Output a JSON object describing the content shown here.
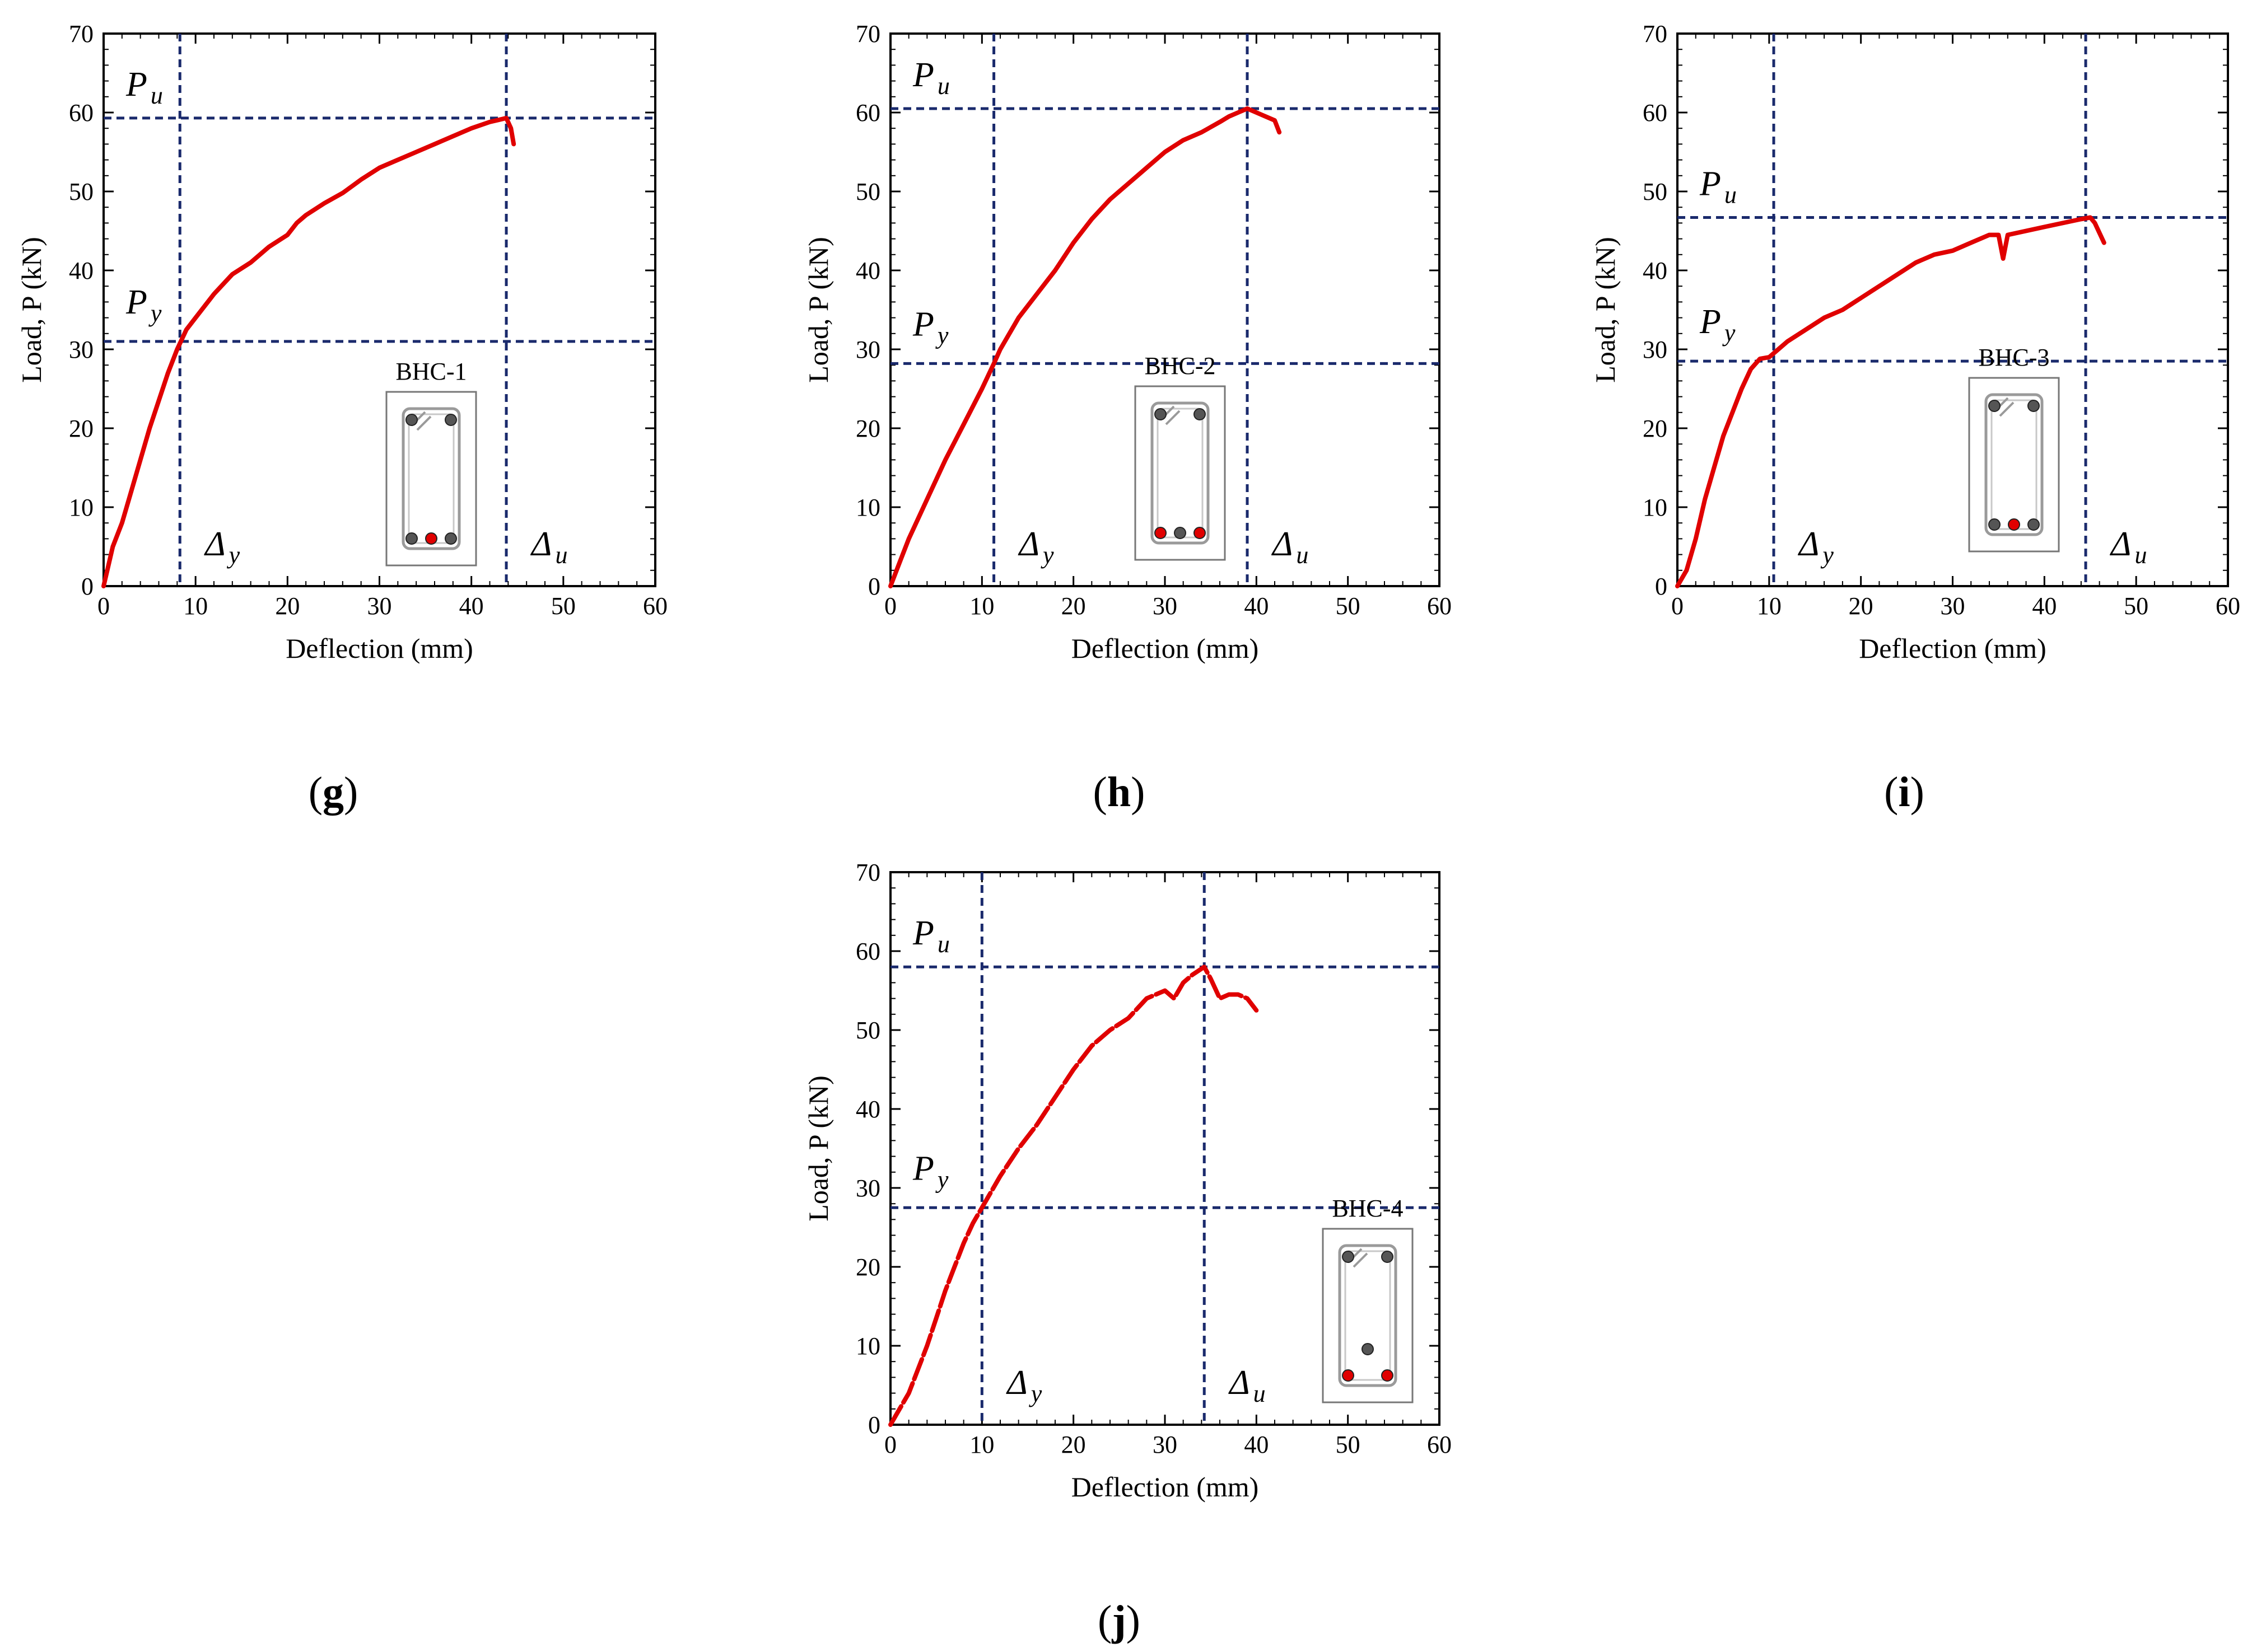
{
  "chart_data": [
    {
      "type": "line",
      "panel": "g",
      "specimen": "BHC-1",
      "xlabel": "Deflection (mm)",
      "ylabel": "Load, P (kN)",
      "xlim": [
        0,
        60
      ],
      "ylim": [
        0,
        70
      ],
      "xticks": [
        0,
        10,
        20,
        30,
        40,
        50,
        60
      ],
      "yticks": [
        0,
        10,
        20,
        30,
        40,
        50,
        60,
        70
      ],
      "yield": {
        "deflection": 8.3,
        "load": 31.0
      },
      "ultimate": {
        "deflection": 43.8,
        "load": 59.3
      },
      "annotations": {
        "Pu": "P",
        "Pu_sub": "u",
        "Py": "P",
        "Py_sub": "y",
        "Dy": "Δ",
        "Dy_sub": "y",
        "Du": "Δ",
        "Du_sub": "u"
      },
      "series": [
        {
          "name": "BHC-1",
          "color": "#e00000",
          "x": [
            0,
            1,
            2,
            3,
            4,
            5,
            6,
            7,
            8,
            9,
            10,
            12,
            14,
            16,
            18,
            20,
            21,
            22,
            24,
            26,
            28,
            30,
            32,
            34,
            36,
            38,
            40,
            42,
            43.8,
            44.3,
            44.6
          ],
          "y": [
            0,
            5,
            8,
            12,
            16,
            20,
            23.5,
            27,
            30,
            32.5,
            34,
            37,
            39.5,
            41,
            43,
            44.5,
            46,
            47,
            48.5,
            49.8,
            51.5,
            53,
            54,
            55,
            56,
            57,
            58,
            58.8,
            59.3,
            58,
            56
          ]
        }
      ],
      "inset": {
        "top_bars": [
          {
            "color": "#555555"
          },
          {
            "color": "#555555"
          }
        ],
        "bottom_bars": [
          {
            "color": "#555555"
          },
          {
            "color": "#e00000"
          },
          {
            "color": "#555555"
          }
        ]
      }
    },
    {
      "type": "line",
      "panel": "h",
      "specimen": "BHC-2",
      "xlabel": "Deflection (mm)",
      "ylabel": "Load, P (kN)",
      "xlim": [
        0,
        60
      ],
      "ylim": [
        0,
        70
      ],
      "xticks": [
        0,
        10,
        20,
        30,
        40,
        50,
        60
      ],
      "yticks": [
        0,
        10,
        20,
        30,
        40,
        50,
        60,
        70
      ],
      "yield": {
        "deflection": 11.3,
        "load": 28.2
      },
      "ultimate": {
        "deflection": 39.0,
        "load": 60.5
      },
      "annotations": {
        "Pu": "P",
        "Pu_sub": "u",
        "Py": "P",
        "Py_sub": "y",
        "Dy": "Δ",
        "Dy_sub": "y",
        "Du": "Δ",
        "Du_sub": "u"
      },
      "series": [
        {
          "name": "BHC-2",
          "color": "#e00000",
          "x": [
            0,
            1,
            2,
            4,
            6,
            8,
            10,
            11.3,
            12,
            14,
            16,
            18,
            20,
            22,
            24,
            26,
            28,
            30,
            32,
            34,
            36,
            37,
            38,
            39,
            40,
            41,
            42,
            42.5
          ],
          "y": [
            0,
            3,
            6,
            11,
            16,
            20.5,
            25,
            28.2,
            30,
            34,
            37,
            40,
            43.5,
            46.5,
            49,
            51,
            53,
            55,
            56.5,
            57.5,
            58.8,
            59.5,
            60,
            60.5,
            60,
            59.5,
            59,
            57.5
          ]
        }
      ],
      "inset": {
        "top_bars": [
          {
            "color": "#555555"
          },
          {
            "color": "#555555"
          }
        ],
        "bottom_bars": [
          {
            "color": "#e00000"
          },
          {
            "color": "#555555"
          },
          {
            "color": "#e00000"
          }
        ]
      }
    },
    {
      "type": "line",
      "panel": "i",
      "specimen": "BHC-3",
      "xlabel": "Deflection (mm)",
      "ylabel": "Load, P (kN)",
      "xlim": [
        0,
        60
      ],
      "ylim": [
        0,
        70
      ],
      "xticks": [
        0,
        10,
        20,
        30,
        40,
        50,
        60
      ],
      "yticks": [
        0,
        10,
        20,
        30,
        40,
        50,
        60,
        70
      ],
      "yield": {
        "deflection": 10.5,
        "load": 28.5
      },
      "ultimate": {
        "deflection": 44.5,
        "load": 46.7
      },
      "annotations": {
        "Pu": "P",
        "Pu_sub": "u",
        "Py": "P",
        "Py_sub": "y",
        "Dy": "Δ",
        "Dy_sub": "y",
        "Du": "Δ",
        "Du_sub": "u"
      },
      "series": [
        {
          "name": "BHC-3",
          "color": "#e00000",
          "x": [
            0,
            1,
            2,
            3,
            4,
            5,
            6,
            7,
            8,
            9,
            10,
            12,
            14,
            16,
            18,
            20,
            22,
            24,
            26,
            28,
            30,
            32,
            34,
            35,
            35.5,
            36,
            38,
            40,
            42,
            44,
            45,
            45.5,
            46.5
          ],
          "y": [
            0,
            2,
            6,
            11,
            15,
            19,
            22,
            25,
            27.5,
            28.8,
            29,
            31,
            32.5,
            34,
            35,
            36.5,
            38,
            39.5,
            41,
            42,
            42.5,
            43.5,
            44.5,
            44.5,
            41.5,
            44.5,
            45,
            45.5,
            46,
            46.5,
            46.7,
            46,
            43.5
          ]
        }
      ],
      "inset": {
        "top_bars": [
          {
            "color": "#555555"
          },
          {
            "color": "#555555"
          }
        ],
        "bottom_bars": [
          {
            "color": "#555555"
          },
          {
            "color": "#e00000"
          },
          {
            "color": "#555555"
          }
        ]
      }
    },
    {
      "type": "line",
      "panel": "j",
      "specimen": "BHC-4",
      "xlabel": "Deflection (mm)",
      "ylabel": "Load, P (kN)",
      "xlim": [
        0,
        60
      ],
      "ylim": [
        0,
        70
      ],
      "xticks": [
        0,
        10,
        20,
        30,
        40,
        50,
        60
      ],
      "yticks": [
        0,
        10,
        20,
        30,
        40,
        50,
        60,
        70
      ],
      "yield": {
        "deflection": 10.0,
        "load": 27.5
      },
      "ultimate": {
        "deflection": 34.3,
        "load": 58.0
      },
      "annotations": {
        "Pu": "P",
        "Pu_sub": "u",
        "Py": "P",
        "Py_sub": "y",
        "Dy": "Δ",
        "Dy_sub": "y",
        "Du": "Δ",
        "Du_sub": "u"
      },
      "series": [
        {
          "name": "BHC-4",
          "color": "#e00000",
          "x": [
            0,
            1,
            2,
            3,
            4,
            5,
            6,
            7,
            8,
            9,
            10,
            12,
            14,
            16,
            18,
            20,
            22,
            24,
            26,
            28,
            30,
            31,
            32,
            33,
            34.3,
            35,
            36,
            37,
            38,
            39,
            40
          ],
          "y": [
            0,
            2,
            4,
            7,
            10,
            13.5,
            17,
            20,
            23,
            25.5,
            27.5,
            31.5,
            35,
            38,
            41.5,
            45,
            48,
            50,
            51.5,
            54,
            55,
            54,
            56,
            57,
            58,
            56.5,
            54,
            54.5,
            54.5,
            54,
            52.5
          ]
        }
      ],
      "inset": {
        "top_bars": [
          {
            "color": "#555555"
          },
          {
            "color": "#555555"
          }
        ],
        "mid_bars": [
          {
            "color": "#555555"
          }
        ],
        "bottom_bars": [
          {
            "color": "#e00000"
          },
          {
            "color": "#e00000"
          }
        ]
      }
    }
  ],
  "panels": [
    {
      "label": "(",
      "letter": "g",
      "close": ")"
    },
    {
      "label": "(",
      "letter": "h",
      "close": ")"
    },
    {
      "label": "(",
      "letter": "i",
      "close": ")"
    },
    {
      "label": "(",
      "letter": "j",
      "close": ")"
    }
  ],
  "colors": {
    "curve": "#e00000",
    "guide": "#1a2a6c",
    "axis": "#000000",
    "rebar": "#555555",
    "inset_border": "#777777"
  }
}
